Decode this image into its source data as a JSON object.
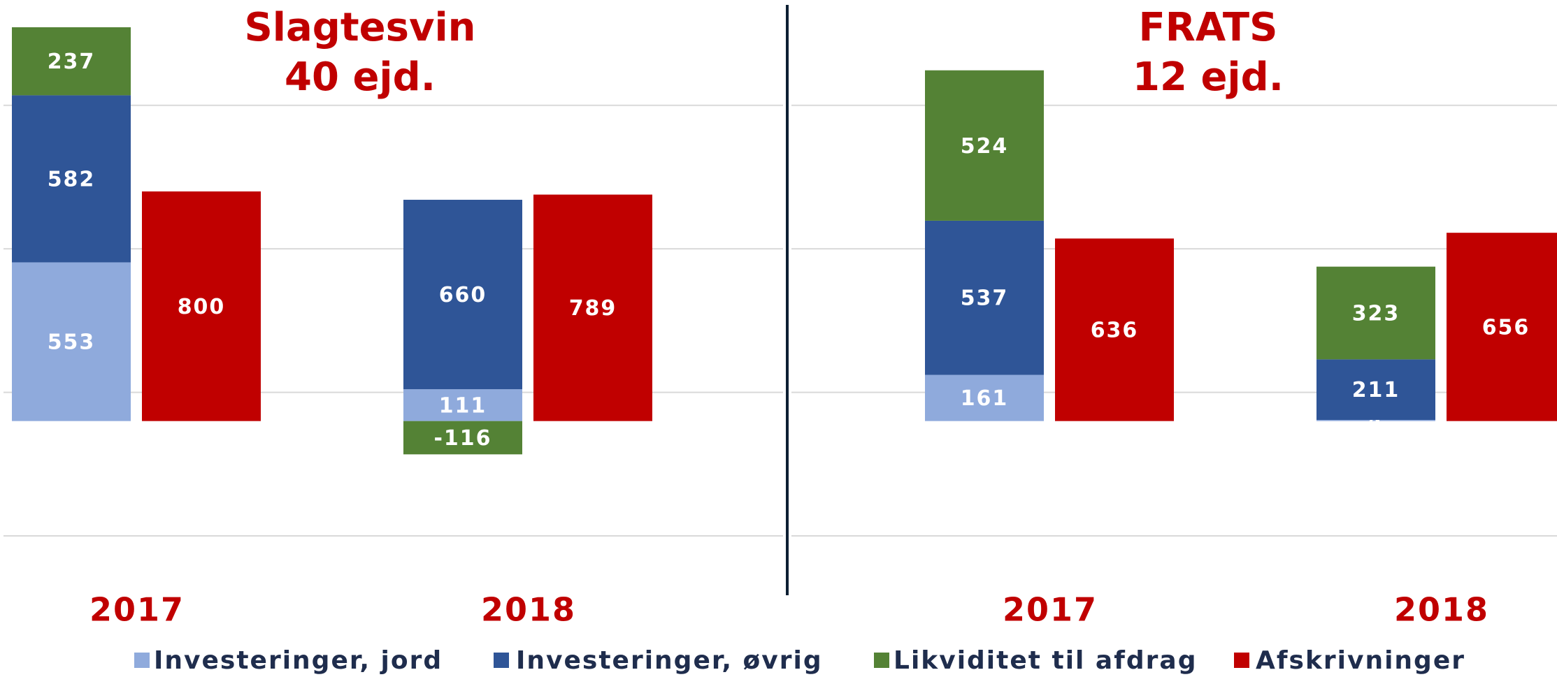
{
  "chart_data": [
    {
      "type": "bar",
      "title": "Slagtesvin",
      "subtitle": "40 ejd.",
      "categories": [
        "2017",
        "2018"
      ],
      "series": [
        {
          "name": "Investeringer, jord",
          "color": "#8faadc",
          "values": [
            553,
            111
          ]
        },
        {
          "name": "Investeringer, øvrig",
          "color": "#2f5597",
          "values": [
            582,
            660
          ]
        },
        {
          "name": "Likviditet til afdrag",
          "color": "#548235",
          "values": [
            237,
            -116
          ]
        },
        {
          "name": "Afskrivninger",
          "color": "#c00000",
          "values": [
            800,
            789
          ]
        }
      ],
      "ylim": [
        -400,
        1467
      ],
      "yticks": [
        -400,
        100,
        600,
        1100
      ],
      "grid": true
    },
    {
      "type": "bar",
      "title": "FRATS",
      "subtitle": "12 ejd.",
      "categories": [
        "2017",
        "2018"
      ],
      "series": [
        {
          "name": "Investeringer, jord",
          "color": "#8faadc",
          "values": [
            161,
            4
          ]
        },
        {
          "name": "Investeringer, øvrig",
          "color": "#2f5597",
          "values": [
            537,
            211
          ]
        },
        {
          "name": "Likviditet til afdrag",
          "color": "#548235",
          "values": [
            524,
            323
          ]
        },
        {
          "name": "Afskrivninger",
          "color": "#c00000",
          "values": [
            636,
            656
          ]
        }
      ],
      "ylim": [
        -400,
        1467
      ],
      "yticks": [
        -400,
        100,
        600,
        1100
      ],
      "grid": true
    }
  ]
}
